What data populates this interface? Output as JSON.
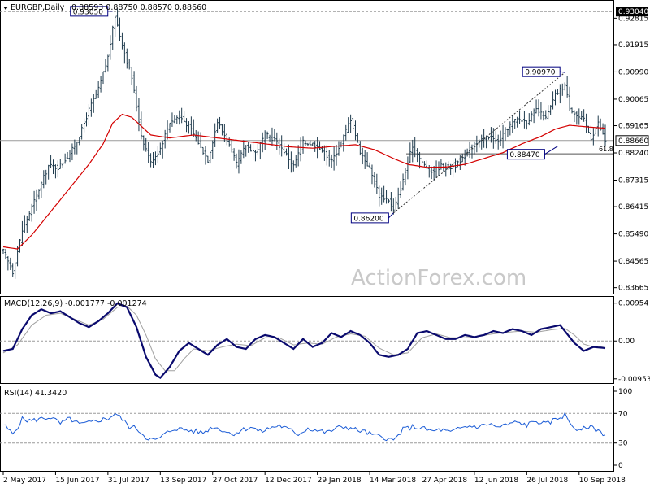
{
  "colors": {
    "bars": "#1f3b4d",
    "ma": "#d40000",
    "macd_line": "#0a0a6e",
    "macd_signal": "#a0a0a0",
    "rsi": "#1a5bd6",
    "box_border": "#000080",
    "grid": "#9a9a9a"
  },
  "watermark": "ActionForex.com",
  "chart_data": [
    {
      "type": "ohlc",
      "title": "EURGBP,Daily",
      "ohlc_header": "0.88593 0.88750 0.88570 0.88660",
      "ylim": [
        0.8349,
        0.9335
      ],
      "yticks": [
        "0.92815",
        "0.91915",
        "0.90990",
        "0.90065",
        "0.89165",
        "0.88240",
        "0.87315",
        "0.86415",
        "0.85490",
        "0.84565",
        "0.83665"
      ],
      "current_price": "0.88660",
      "top_level": "0.93040",
      "fib_label": "61.8",
      "fib_level": 0.8821,
      "annotations": [
        {
          "label": "0.93050",
          "value": 0.9305,
          "index": 46
        },
        {
          "label": "0.90970",
          "value": 0.9097,
          "index": 236
        },
        {
          "label": "0.88470",
          "value": 0.8847,
          "index": 233
        },
        {
          "label": "0.86200",
          "value": 0.862,
          "index": 164
        }
      ],
      "trendline": [
        {
          "index": 164,
          "value": 0.862
        },
        {
          "index": 236,
          "value": 0.9097
        }
      ],
      "close_anchors": [
        [
          0,
          0.849
        ],
        [
          4,
          0.842
        ],
        [
          8,
          0.856
        ],
        [
          14,
          0.868
        ],
        [
          19,
          0.878
        ],
        [
          23,
          0.8775
        ],
        [
          28,
          0.882
        ],
        [
          32,
          0.888
        ],
        [
          36,
          0.897
        ],
        [
          40,
          0.904
        ],
        [
          44,
          0.915
        ],
        [
          47,
          0.929
        ],
        [
          50,
          0.919
        ],
        [
          54,
          0.908
        ],
        [
          58,
          0.8885
        ],
        [
          62,
          0.879
        ],
        [
          66,
          0.884
        ],
        [
          70,
          0.893
        ],
        [
          74,
          0.895
        ],
        [
          78,
          0.8915
        ],
        [
          82,
          0.886
        ],
        [
          86,
          0.88
        ],
        [
          90,
          0.893
        ],
        [
          94,
          0.887
        ],
        [
          98,
          0.8785
        ],
        [
          102,
          0.885
        ],
        [
          106,
          0.8825
        ],
        [
          110,
          0.8885
        ],
        [
          114,
          0.887
        ],
        [
          118,
          0.883
        ],
        [
          122,
          0.878
        ],
        [
          126,
          0.886
        ],
        [
          130,
          0.8855
        ],
        [
          134,
          0.8835
        ],
        [
          138,
          0.8795
        ],
        [
          142,
          0.886
        ],
        [
          146,
          0.894
        ],
        [
          150,
          0.883
        ],
        [
          154,
          0.877
        ],
        [
          158,
          0.868
        ],
        [
          162,
          0.8665
        ],
        [
          164,
          0.8628
        ],
        [
          168,
          0.873
        ],
        [
          172,
          0.885
        ],
        [
          176,
          0.879
        ],
        [
          180,
          0.876
        ],
        [
          184,
          0.878
        ],
        [
          188,
          0.8775
        ],
        [
          192,
          0.879
        ],
        [
          196,
          0.884
        ],
        [
          200,
          0.886
        ],
        [
          204,
          0.888
        ],
        [
          208,
          0.886
        ],
        [
          212,
          0.891
        ],
        [
          216,
          0.894
        ],
        [
          220,
          0.893
        ],
        [
          224,
          0.897
        ],
        [
          228,
          0.894
        ],
        [
          232,
          0.902
        ],
        [
          236,
          0.9055
        ],
        [
          238,
          0.898
        ],
        [
          241,
          0.895
        ],
        [
          244,
          0.8935
        ],
        [
          247,
          0.8875
        ],
        [
          250,
          0.8925
        ],
        [
          253,
          0.8866
        ]
      ],
      "ma_anchors": [
        [
          0,
          0.8505
        ],
        [
          6,
          0.8498
        ],
        [
          12,
          0.8545
        ],
        [
          18,
          0.8605
        ],
        [
          24,
          0.8665
        ],
        [
          30,
          0.8725
        ],
        [
          36,
          0.8785
        ],
        [
          42,
          0.8855
        ],
        [
          46,
          0.8925
        ],
        [
          50,
          0.8955
        ],
        [
          54,
          0.8945
        ],
        [
          58,
          0.8915
        ],
        [
          62,
          0.8885
        ],
        [
          70,
          0.8875
        ],
        [
          80,
          0.8885
        ],
        [
          90,
          0.8875
        ],
        [
          100,
          0.8865
        ],
        [
          110,
          0.8855
        ],
        [
          120,
          0.8845
        ],
        [
          130,
          0.884
        ],
        [
          140,
          0.8847
        ],
        [
          148,
          0.8852
        ],
        [
          156,
          0.8835
        ],
        [
          164,
          0.8805
        ],
        [
          170,
          0.8785
        ],
        [
          178,
          0.8775
        ],
        [
          186,
          0.8776
        ],
        [
          194,
          0.8785
        ],
        [
          202,
          0.8805
        ],
        [
          210,
          0.8825
        ],
        [
          218,
          0.8855
        ],
        [
          226,
          0.888
        ],
        [
          232,
          0.8905
        ],
        [
          238,
          0.8918
        ],
        [
          246,
          0.8912
        ],
        [
          253,
          0.8908
        ]
      ],
      "x_labels": [
        "2 May 2017",
        "15 Jun 2017",
        "31 Jul 2017",
        "13 Sep 2017",
        "27 Oct 2017",
        "12 Dec 2017",
        "29 Jan 2018",
        "14 Mar 2018",
        "27 Apr 2018",
        "12 Jun 2018",
        "26 Jul 2018",
        "10 Sep 2018"
      ],
      "x_label_index": [
        0,
        22,
        44,
        66,
        88,
        110,
        132,
        154,
        176,
        198,
        220,
        242
      ]
    },
    {
      "type": "line",
      "title": "MACD(12,26,9) -0.001777 -0.001274",
      "ylim": [
        -0.0104,
        0.0105
      ],
      "yticks": [
        "0.00954",
        "0.00",
        "-0.009538"
      ],
      "series": [
        {
          "name": "MACD",
          "values_anchors": [
            [
              0,
              -0.0025
            ],
            [
              4,
              -0.002
            ],
            [
              8,
              0.003
            ],
            [
              12,
              0.0065
            ],
            [
              16,
              0.008
            ],
            [
              20,
              0.007
            ],
            [
              24,
              0.0075
            ],
            [
              28,
              0.006
            ],
            [
              32,
              0.0045
            ],
            [
              36,
              0.0035
            ],
            [
              40,
              0.005
            ],
            [
              44,
              0.007
            ],
            [
              48,
              0.0095
            ],
            [
              52,
              0.0085
            ],
            [
              56,
              0.0035
            ],
            [
              60,
              -0.004
            ],
            [
              64,
              -0.0085
            ],
            [
              66,
              -0.0093
            ],
            [
              70,
              -0.0065
            ],
            [
              74,
              -0.0025
            ],
            [
              78,
              -0.0005
            ],
            [
              82,
              -0.002
            ],
            [
              86,
              -0.0035
            ],
            [
              90,
              -0.001
            ],
            [
              94,
              0.0005
            ],
            [
              98,
              -0.0015
            ],
            [
              102,
              -0.002
            ],
            [
              106,
              0.0005
            ],
            [
              110,
              0.0015
            ],
            [
              114,
              0.001
            ],
            [
              118,
              -0.0005
            ],
            [
              122,
              -0.002
            ],
            [
              126,
              0.0005
            ],
            [
              130,
              -0.0015
            ],
            [
              134,
              -0.0005
            ],
            [
              138,
              0.002
            ],
            [
              142,
              0.001
            ],
            [
              146,
              0.0025
            ],
            [
              150,
              0.0015
            ],
            [
              154,
              -0.0005
            ],
            [
              158,
              -0.0035
            ],
            [
              162,
              -0.004
            ],
            [
              166,
              -0.0035
            ],
            [
              170,
              -0.002
            ],
            [
              174,
              0.002
            ],
            [
              178,
              0.0025
            ],
            [
              182,
              0.0015
            ],
            [
              186,
              0.0005
            ],
            [
              190,
              0.0005
            ],
            [
              194,
              0.0015
            ],
            [
              198,
              0.001
            ],
            [
              202,
              0.0015
            ],
            [
              206,
              0.0025
            ],
            [
              210,
              0.002
            ],
            [
              214,
              0.003
            ],
            [
              218,
              0.0025
            ],
            [
              222,
              0.0015
            ],
            [
              226,
              0.003
            ],
            [
              230,
              0.0035
            ],
            [
              234,
              0.004
            ],
            [
              236,
              0.0025
            ],
            [
              240,
              -0.0005
            ],
            [
              244,
              -0.0025
            ],
            [
              248,
              -0.0015
            ],
            [
              253,
              -0.0018
            ]
          ]
        },
        {
          "name": "Signal",
          "values_anchors": [
            [
              0,
              -0.003
            ],
            [
              6,
              -0.001
            ],
            [
              12,
              0.004
            ],
            [
              18,
              0.0065
            ],
            [
              24,
              0.007
            ],
            [
              30,
              0.0055
            ],
            [
              36,
              0.004
            ],
            [
              42,
              0.0055
            ],
            [
              48,
              0.0085
            ],
            [
              52,
              0.0088
            ],
            [
              56,
              0.0065
            ],
            [
              60,
              0.0015
            ],
            [
              64,
              -0.0045
            ],
            [
              68,
              -0.0075
            ],
            [
              72,
              -0.0075
            ],
            [
              76,
              -0.0045
            ],
            [
              80,
              -0.002
            ],
            [
              86,
              -0.0025
            ],
            [
              92,
              -0.0015
            ],
            [
              98,
              -0.0008
            ],
            [
              104,
              -0.0012
            ],
            [
              110,
              0.0008
            ],
            [
              116,
              0.0008
            ],
            [
              122,
              -0.001
            ],
            [
              128,
              -0.0005
            ],
            [
              134,
              -0.0008
            ],
            [
              140,
              0.001
            ],
            [
              146,
              0.0018
            ],
            [
              152,
              0.0012
            ],
            [
              158,
              -0.0018
            ],
            [
              164,
              -0.0035
            ],
            [
              170,
              -0.003
            ],
            [
              176,
              0.0008
            ],
            [
              182,
              0.0018
            ],
            [
              188,
              0.0008
            ],
            [
              194,
              0.0008
            ],
            [
              200,
              0.0012
            ],
            [
              206,
              0.0018
            ],
            [
              212,
              0.0022
            ],
            [
              218,
              0.0025
            ],
            [
              224,
              0.0022
            ],
            [
              230,
              0.0028
            ],
            [
              236,
              0.0032
            ],
            [
              240,
              0.0015
            ],
            [
              244,
              -0.0008
            ],
            [
              248,
              -0.0015
            ],
            [
              253,
              -0.0013
            ]
          ]
        }
      ]
    },
    {
      "type": "line",
      "title": "RSI(14) 41.3420",
      "ylim": [
        0,
        100
      ],
      "yticks": [
        "100",
        "70",
        "30",
        "0"
      ],
      "levels": [
        70,
        30
      ],
      "series": [
        {
          "name": "RSI",
          "values_anchors": [
            [
              0,
              55
            ],
            [
              4,
              42
            ],
            [
              8,
              62
            ],
            [
              12,
              60
            ],
            [
              16,
              63
            ],
            [
              20,
              65
            ],
            [
              24,
              56
            ],
            [
              28,
              63
            ],
            [
              32,
              55
            ],
            [
              36,
              57
            ],
            [
              40,
              61
            ],
            [
              44,
              63
            ],
            [
              47,
              70
            ],
            [
              50,
              62
            ],
            [
              53,
              52
            ],
            [
              56,
              50
            ],
            [
              60,
              38
            ],
            [
              64,
              33
            ],
            [
              68,
              42
            ],
            [
              72,
              50
            ],
            [
              76,
              48
            ],
            [
              80,
              46
            ],
            [
              84,
              44
            ],
            [
              88,
              52
            ],
            [
              92,
              48
            ],
            [
              96,
              42
            ],
            [
              100,
              47
            ],
            [
              104,
              52
            ],
            [
              108,
              45
            ],
            [
              112,
              50
            ],
            [
              116,
              54
            ],
            [
              120,
              48
            ],
            [
              124,
              42
            ],
            [
              128,
              50
            ],
            [
              132,
              47
            ],
            [
              136,
              44
            ],
            [
              140,
              50
            ],
            [
              144,
              52
            ],
            [
              148,
              48
            ],
            [
              152,
              45
            ],
            [
              156,
              40
            ],
            [
              160,
              38
            ],
            [
              164,
              33
            ],
            [
              168,
              48
            ],
            [
              172,
              52
            ],
            [
              176,
              50
            ],
            [
              180,
              46
            ],
            [
              184,
              48
            ],
            [
              188,
              44
            ],
            [
              192,
              50
            ],
            [
              196,
              53
            ],
            [
              200,
              52
            ],
            [
              204,
              56
            ],
            [
              208,
              51
            ],
            [
              212,
              55
            ],
            [
              216,
              58
            ],
            [
              220,
              54
            ],
            [
              224,
              60
            ],
            [
              228,
              55
            ],
            [
              232,
              62
            ],
            [
              236,
              68
            ],
            [
              238,
              58
            ],
            [
              242,
              45
            ],
            [
              246,
              53
            ],
            [
              250,
              47
            ],
            [
              253,
              41.3
            ]
          ]
        }
      ]
    }
  ]
}
